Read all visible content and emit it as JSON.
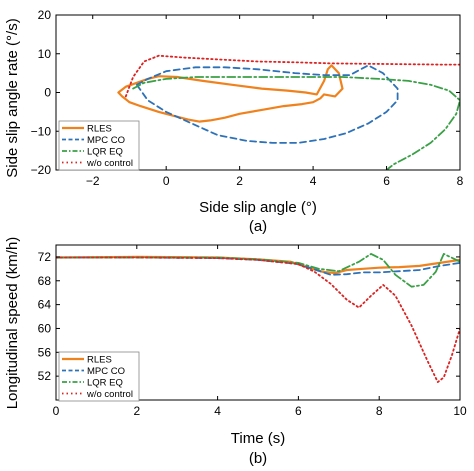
{
  "chart_data": [
    {
      "type": "line",
      "caption": "(a)",
      "xlabel": "Side slip angle (°)",
      "ylabel": "Side slip angle rate (°/s)",
      "xlim": [
        -3,
        8
      ],
      "ylim": [
        -20,
        20
      ],
      "xticks": [
        "−2",
        "0",
        "2",
        "4",
        "6",
        "8"
      ],
      "yticks": [
        "20",
        "10",
        "0",
        "−10",
        "−20"
      ],
      "grid": false,
      "legend_position": "bottom-left",
      "series": [
        {
          "name": "RLES",
          "color": "#f0821e",
          "style": "solid",
          "x": [
            -1.2,
            -1.3,
            -1.1,
            -0.8,
            -0.5,
            -0.2,
            0.3,
            1.0,
            1.8,
            2.6,
            3.3,
            3.8,
            4.1,
            4.3,
            4.4,
            4.5,
            4.7,
            4.8,
            4.6,
            4.3,
            4.2,
            4.0,
            3.7,
            3.2,
            2.6,
            2.0,
            1.6,
            1.2,
            0.9,
            0.6,
            0.2,
            -0.2,
            -0.7,
            -1.0,
            -1.2
          ],
          "y": [
            -1,
            0,
            1.5,
            2.5,
            3.5,
            4.2,
            4.0,
            3.0,
            2.0,
            1.0,
            0.5,
            0.0,
            -0.5,
            3.0,
            6.0,
            7.0,
            5.0,
            1.0,
            -1.0,
            -0.5,
            -1.5,
            -2.5,
            -3.0,
            -3.5,
            -4.5,
            -5.5,
            -6.5,
            -7.2,
            -7.5,
            -7.0,
            -6.0,
            -5.0,
            -3.5,
            -2.5,
            -1.0
          ]
        },
        {
          "name": "MPC CO",
          "color": "#2d72b8",
          "style": "dashed",
          "x": [
            -0.8,
            -0.5,
            0.0,
            0.8,
            1.6,
            2.5,
            3.5,
            4.3,
            5.0,
            5.5,
            5.9,
            6.3,
            6.3,
            6.0,
            5.5,
            4.9,
            4.3,
            3.6,
            2.9,
            2.2,
            1.4,
            0.7,
            0.0,
            -0.5,
            -0.8
          ],
          "y": [
            2.0,
            3.5,
            5.5,
            6.5,
            6.5,
            6.0,
            5.0,
            4.5,
            4.5,
            7.0,
            5.0,
            1.0,
            -2.0,
            -5.0,
            -8.0,
            -10.5,
            -12.0,
            -13.0,
            -13.0,
            -12.5,
            -11.0,
            -8.0,
            -5.0,
            -2.0,
            2.0
          ]
        },
        {
          "name": "LQR EQ",
          "color": "#3aa046",
          "style": "dashdot",
          "x": [
            -0.9,
            -0.6,
            0.0,
            0.8,
            1.8,
            2.8,
            3.8,
            4.8,
            5.8,
            6.6,
            7.2,
            7.7,
            8.0,
            7.9,
            7.6,
            7.2,
            6.7,
            6.2,
            6.0
          ],
          "y": [
            1.0,
            2.5,
            3.5,
            4.0,
            4.0,
            4.0,
            4.0,
            4.0,
            3.5,
            3.0,
            2.0,
            0.5,
            -2.0,
            -5.5,
            -9.5,
            -13.0,
            -16.0,
            -18.5,
            -20.0
          ]
        },
        {
          "name": "w/o control",
          "color": "#dd2222",
          "style": "dotted",
          "x": [
            -1.1,
            -0.9,
            -0.6,
            -0.2,
            0.5,
            1.5,
            2.5,
            3.5,
            4.5,
            5.5,
            6.5,
            7.5,
            8.0
          ],
          "y": [
            -1.0,
            4.0,
            8.0,
            9.5,
            9.0,
            8.5,
            8.0,
            7.8,
            7.5,
            7.4,
            7.3,
            7.2,
            7.2
          ]
        }
      ]
    },
    {
      "type": "line",
      "caption": "(b)",
      "xlabel": "Time (s)",
      "ylabel": "Longitudinal speed (km/h)",
      "xlim": [
        0,
        10
      ],
      "ylim": [
        48,
        74
      ],
      "xticks": [
        "0",
        "2",
        "4",
        "6",
        "8",
        "10"
      ],
      "yticks": [
        "72",
        "68",
        "64",
        "60",
        "56",
        "52"
      ],
      "grid": false,
      "legend_position": "bottom-left",
      "series": [
        {
          "name": "RLES",
          "color": "#f0821e",
          "style": "solid",
          "x": [
            0,
            2,
            4,
            5,
            5.8,
            6.2,
            6.6,
            6.9,
            7.2,
            7.6,
            8.0,
            8.5,
            9.0,
            9.5,
            10.0
          ],
          "y": [
            71.9,
            72.0,
            71.9,
            71.6,
            71.2,
            70.3,
            69.5,
            69.3,
            69.8,
            70.0,
            70.2,
            70.3,
            70.5,
            71.0,
            71.5
          ]
        },
        {
          "name": "MPC CO",
          "color": "#2d72b8",
          "style": "dashed",
          "x": [
            0,
            2,
            4,
            5,
            6.0,
            6.4,
            6.8,
            7.2,
            7.6,
            8.0,
            8.5,
            9.0,
            9.5,
            10.0
          ],
          "y": [
            71.9,
            71.9,
            71.8,
            71.5,
            70.8,
            69.9,
            69.0,
            69.1,
            69.4,
            69.4,
            69.6,
            69.8,
            70.5,
            71.0
          ]
        },
        {
          "name": "LQR EQ",
          "color": "#3aa046",
          "style": "dashdot",
          "x": [
            0,
            2,
            4,
            5,
            6.0,
            6.5,
            7.0,
            7.5,
            7.8,
            8.1,
            8.4,
            8.8,
            9.1,
            9.4,
            9.6,
            10.0
          ],
          "y": [
            71.9,
            71.9,
            71.9,
            71.6,
            71.0,
            70.0,
            69.6,
            71.2,
            72.5,
            71.5,
            69.0,
            67.0,
            67.3,
            69.5,
            72.5,
            71.2
          ]
        },
        {
          "name": "w/o control",
          "color": "#dd2222",
          "style": "dotted",
          "x": [
            0,
            2,
            4,
            5,
            6.0,
            6.4,
            6.8,
            7.2,
            7.5,
            7.8,
            8.1,
            8.4,
            8.8,
            9.2,
            9.45,
            9.6,
            9.8,
            10.0
          ],
          "y": [
            71.9,
            71.9,
            71.8,
            71.5,
            70.8,
            69.5,
            67.5,
            64.8,
            63.5,
            65.5,
            67.3,
            65.5,
            60.5,
            54.5,
            51.0,
            51.8,
            55.5,
            60.0
          ]
        }
      ]
    }
  ]
}
